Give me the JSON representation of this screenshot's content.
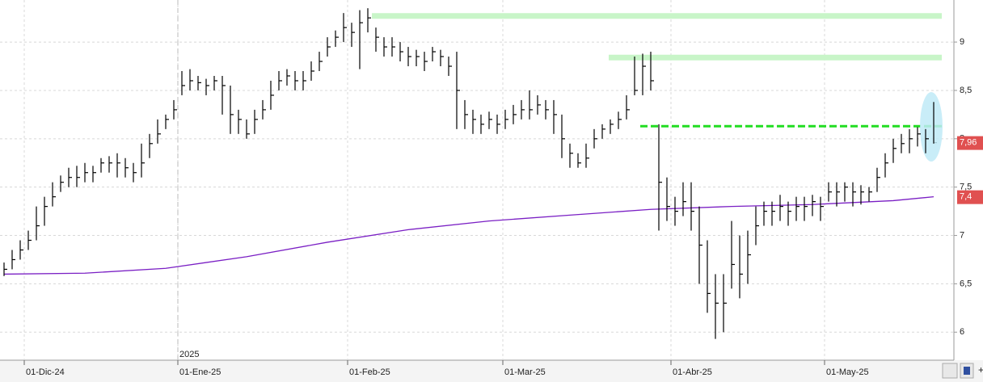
{
  "chart_data": {
    "type": "ohlc",
    "x": [
      0,
      1,
      2,
      3,
      4,
      5,
      6,
      7,
      8,
      9,
      10,
      11,
      12,
      13,
      14,
      15,
      16,
      17,
      18,
      19,
      20,
      21,
      22,
      23,
      24,
      25,
      26,
      27,
      28,
      29,
      30,
      31,
      32,
      33,
      34,
      35,
      36,
      37,
      38,
      39,
      40,
      41,
      42,
      43,
      44,
      45,
      46,
      47,
      48,
      49,
      50,
      51,
      52,
      53,
      54,
      55,
      56,
      57,
      58,
      59,
      60,
      61,
      62,
      63,
      64,
      65,
      66,
      67,
      68,
      69,
      70,
      71,
      72,
      73,
      74,
      75,
      76,
      77,
      78,
      79,
      80,
      81,
      82,
      83,
      84,
      85,
      86,
      87,
      88,
      89,
      90,
      91,
      92,
      93,
      94,
      95,
      96,
      97,
      98,
      99,
      100,
      101,
      102,
      103,
      104,
      105,
      106,
      107,
      108,
      109,
      110,
      111,
      112,
      113,
      114,
      115
    ],
    "high": [
      6.72,
      6.85,
      6.95,
      7.05,
      7.3,
      7.4,
      7.55,
      7.62,
      7.7,
      7.72,
      7.75,
      7.72,
      7.8,
      7.82,
      7.85,
      7.8,
      7.75,
      7.95,
      8.05,
      8.2,
      8.25,
      8.4,
      8.7,
      8.72,
      8.65,
      8.62,
      8.65,
      8.65,
      8.55,
      8.3,
      8.2,
      8.3,
      8.4,
      8.6,
      8.7,
      8.72,
      8.7,
      8.7,
      8.8,
      8.9,
      9.05,
      9.12,
      9.3,
      9.2,
      9.33,
      9.35,
      9.15,
      9.05,
      9.05,
      9.0,
      8.95,
      8.92,
      8.9,
      8.95,
      8.92,
      8.85,
      8.9,
      8.4,
      8.3,
      8.25,
      8.28,
      8.25,
      8.3,
      8.35,
      8.4,
      8.5,
      8.45,
      8.4,
      8.4,
      8.25,
      7.95,
      7.85,
      7.95,
      8.1,
      8.15,
      8.2,
      8.28,
      8.45,
      8.85,
      8.88,
      8.9,
      8.15,
      7.6,
      7.4,
      7.55,
      7.55,
      7.3,
      6.95,
      6.6,
      6.6,
      7.15,
      7.0,
      7.05,
      7.3,
      7.35,
      7.35,
      7.42,
      7.35,
      7.4,
      7.4,
      7.42,
      7.4,
      7.55,
      7.55,
      7.55,
      7.55,
      7.52,
      7.5,
      7.7,
      7.85,
      8.0,
      8.05,
      8.1,
      8.12,
      8.1,
      8.38
    ],
    "low": [
      6.58,
      6.65,
      6.75,
      6.85,
      6.95,
      7.1,
      7.3,
      7.45,
      7.5,
      7.5,
      7.55,
      7.55,
      7.65,
      7.65,
      7.6,
      7.6,
      7.55,
      7.6,
      7.8,
      7.95,
      8.1,
      8.2,
      8.45,
      8.5,
      8.5,
      8.45,
      8.5,
      8.25,
      8.05,
      8.05,
      8.0,
      8.05,
      8.2,
      8.3,
      8.5,
      8.55,
      8.5,
      8.5,
      8.6,
      8.7,
      8.85,
      8.95,
      9.0,
      8.95,
      8.72,
      9.1,
      8.9,
      8.85,
      8.85,
      8.8,
      8.75,
      8.75,
      8.7,
      8.8,
      8.75,
      8.65,
      8.1,
      8.1,
      8.05,
      8.05,
      8.1,
      8.05,
      8.1,
      8.15,
      8.2,
      8.2,
      8.25,
      8.2,
      8.05,
      7.8,
      7.7,
      7.7,
      7.7,
      7.9,
      8.0,
      8.05,
      8.1,
      8.2,
      8.45,
      8.45,
      8.5,
      7.05,
      7.15,
      7.1,
      7.2,
      7.05,
      6.5,
      6.2,
      5.93,
      6.0,
      6.45,
      6.35,
      6.5,
      6.9,
      7.1,
      7.1,
      7.15,
      7.1,
      7.15,
      7.15,
      7.2,
      7.15,
      7.35,
      7.3,
      7.35,
      7.3,
      7.32,
      7.35,
      7.45,
      7.6,
      7.75,
      7.85,
      7.85,
      7.92,
      7.85,
      7.95
    ],
    "close": [
      6.65,
      6.75,
      6.85,
      6.95,
      7.1,
      7.3,
      7.4,
      7.55,
      7.6,
      7.6,
      7.65,
      7.65,
      7.75,
      7.75,
      7.75,
      7.7,
      7.65,
      7.75,
      7.95,
      8.05,
      8.2,
      8.3,
      8.55,
      8.6,
      8.58,
      8.55,
      8.6,
      8.55,
      8.25,
      8.2,
      8.05,
      8.2,
      8.3,
      8.45,
      8.6,
      8.65,
      8.6,
      8.6,
      8.7,
      8.8,
      8.95,
      9.05,
      9.15,
      9.1,
      9.2,
      9.25,
      9.05,
      8.95,
      8.95,
      8.9,
      8.85,
      8.85,
      8.8,
      8.9,
      8.85,
      8.75,
      8.5,
      8.25,
      8.2,
      8.15,
      8.2,
      8.15,
      8.2,
      8.25,
      8.3,
      8.3,
      8.35,
      8.3,
      8.25,
      8.0,
      7.85,
      7.75,
      7.8,
      8.0,
      8.1,
      8.15,
      8.2,
      8.3,
      8.5,
      8.75,
      8.6,
      7.55,
      7.3,
      7.25,
      7.35,
      7.25,
      6.9,
      6.4,
      6.3,
      6.3,
      6.7,
      6.6,
      6.8,
      7.1,
      7.25,
      7.25,
      7.3,
      7.25,
      7.3,
      7.3,
      7.35,
      7.3,
      7.45,
      7.45,
      7.5,
      7.45,
      7.45,
      7.45,
      7.6,
      7.75,
      7.9,
      7.95,
      8.0,
      8.05,
      8.0,
      7.96
    ],
    "color": "#000000",
    "moving_average": {
      "color": "#7a1fc4",
      "x": [
        0,
        10,
        20,
        30,
        40,
        50,
        60,
        70,
        80,
        90,
        100,
        110,
        115
      ],
      "values": [
        6.6,
        6.61,
        6.66,
        6.78,
        6.93,
        7.06,
        7.15,
        7.21,
        7.27,
        7.3,
        7.32,
        7.36,
        7.4
      ]
    },
    "levels": [
      {
        "value": 9.27,
        "x": [
          45.5,
          116
        ],
        "color": "#c8f5c8",
        "style": "band"
      },
      {
        "value": 8.84,
        "x": [
          74.8,
          116
        ],
        "color": "#c8f5c8",
        "style": "band"
      },
      {
        "value": 8.13,
        "x": [
          78.7,
          116
        ],
        "color": "#22dd22",
        "style": "dashed"
      }
    ],
    "price_labels": [
      {
        "value": 7.96,
        "label": "7,96"
      },
      {
        "value": 7.4,
        "label": "7,4"
      }
    ],
    "price_label_color": "#e05050",
    "year_marker": {
      "value": 21.5,
      "label": "2025"
    },
    "xlim": [
      -0.5,
      117.5
    ],
    "xticks": [
      {
        "value": 2.5,
        "label": "01-Dic-24"
      },
      {
        "value": 21.5,
        "label": "01-Ene-25"
      },
      {
        "value": 42.5,
        "label": "01-Feb-25"
      },
      {
        "value": 61.7,
        "label": "01-Mar-25"
      },
      {
        "value": 82.5,
        "label": "01-Abr-25"
      },
      {
        "value": 101.5,
        "label": "01-May-25"
      }
    ],
    "ylim": [
      5.71,
      9.435
    ],
    "yticks": [
      6,
      {
        "value": 6.5,
        "label": "6,5"
      },
      7,
      {
        "value": 7.5,
        "label": "7,5"
      },
      8,
      {
        "value": 8.5,
        "label": "8,5"
      },
      9
    ],
    "grid": true
  }
}
